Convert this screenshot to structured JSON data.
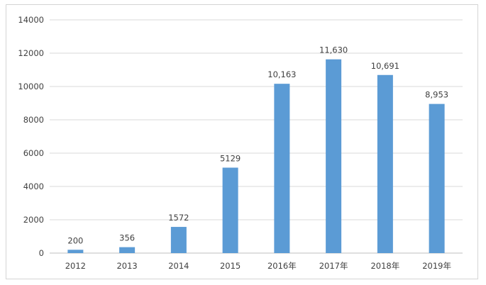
{
  "chart_data": {
    "type": "bar",
    "categories": [
      "2012",
      "2013",
      "2014",
      "2015",
      "2016年",
      "2017年",
      "2018年",
      "2019年"
    ],
    "values": [
      200,
      356,
      1572,
      5129,
      10163,
      11630,
      10691,
      8953
    ],
    "data_labels": [
      "200",
      "356",
      "1572",
      "5129",
      "10,163",
      "11,630",
      "10,691",
      "8,953"
    ],
    "yticks": [
      "0",
      "2000",
      "4000",
      "6000",
      "8000",
      "10000",
      "12000",
      "14000"
    ],
    "ylim": [
      0,
      14000
    ],
    "grid": true,
    "legend": "none",
    "bar_color": "#5b9bd5"
  }
}
